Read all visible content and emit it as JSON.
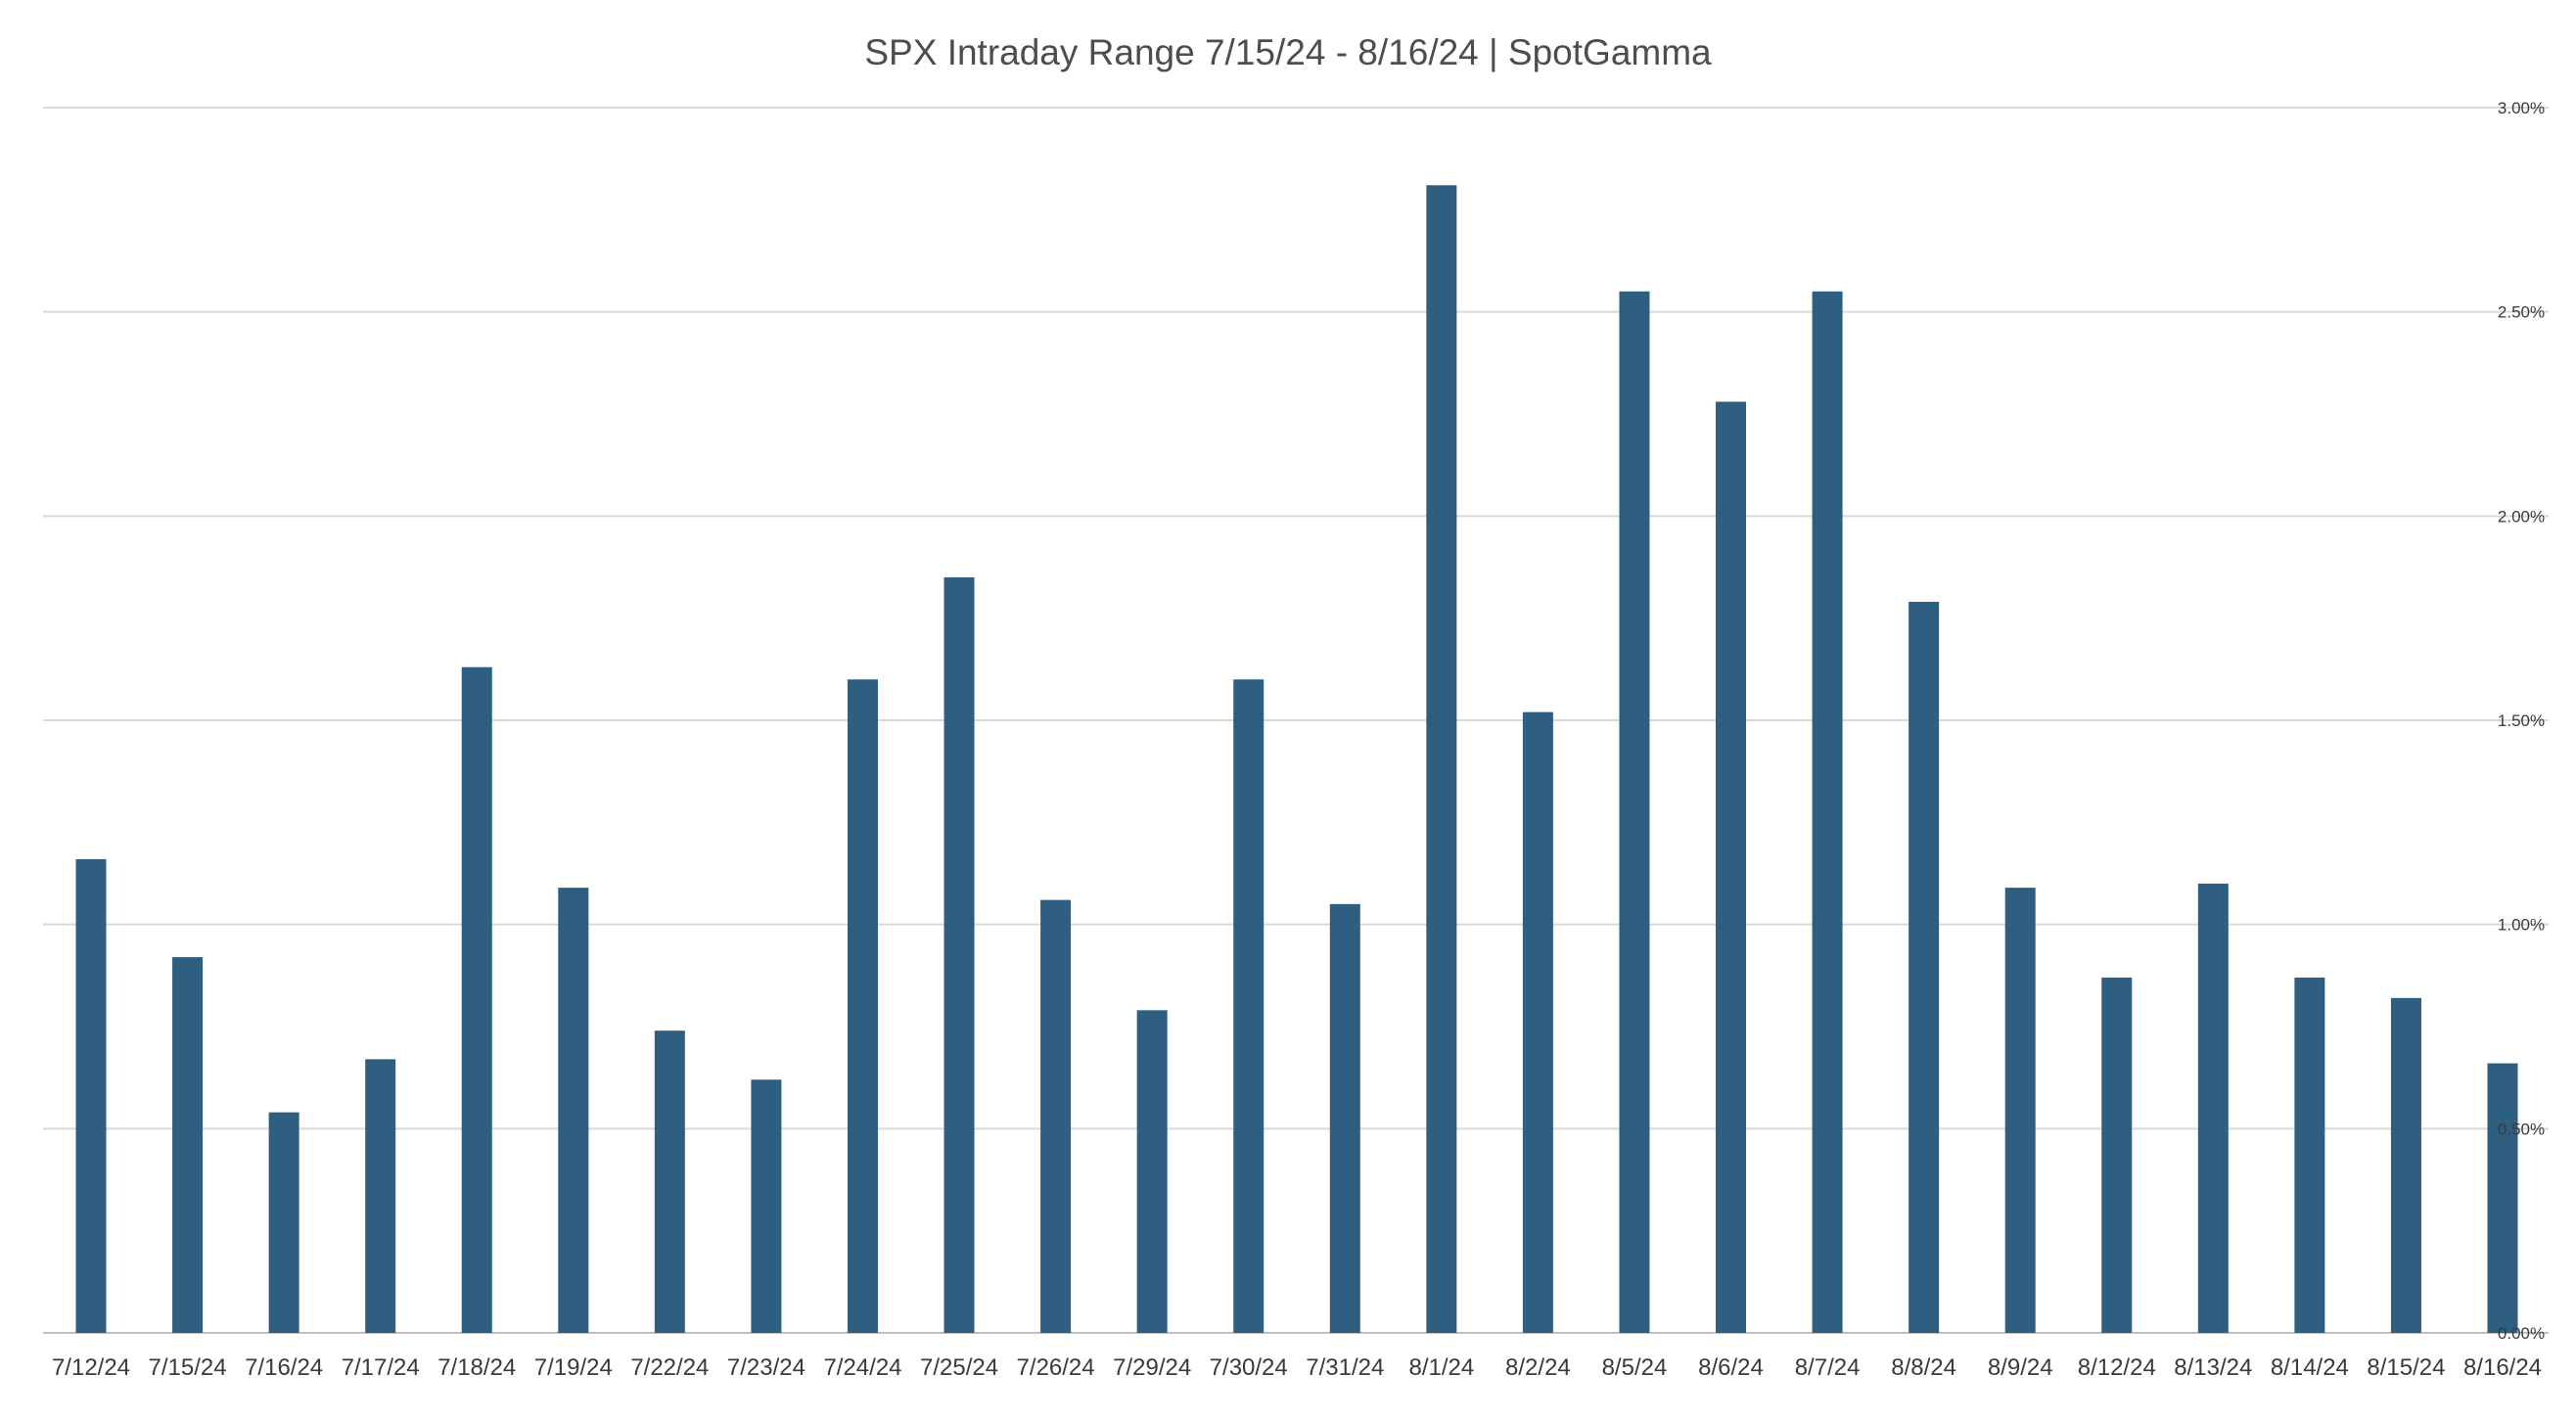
{
  "chart_data": {
    "type": "bar",
    "title": "SPX Intraday Range 7/15/24 - 8/16/24 | SpotGamma",
    "xlabel": "",
    "ylabel": "",
    "ylim": [
      0,
      3.0
    ],
    "y_axis_position": "right",
    "y_ticks": [
      0,
      0.5,
      1.0,
      1.5,
      2.0,
      2.5,
      3.0
    ],
    "y_tick_labels": [
      "0.00%",
      "0.50%",
      "1.00%",
      "1.50%",
      "2.00%",
      "2.50%",
      "3.00%"
    ],
    "grid": true,
    "bar_color": "#2e5f80",
    "categories": [
      "7/12/24",
      "7/15/24",
      "7/16/24",
      "7/17/24",
      "7/18/24",
      "7/19/24",
      "7/22/24",
      "7/23/24",
      "7/24/24",
      "7/25/24",
      "7/26/24",
      "7/29/24",
      "7/30/24",
      "7/31/24",
      "8/1/24",
      "8/2/24",
      "8/5/24",
      "8/6/24",
      "8/7/24",
      "8/8/24",
      "8/9/24",
      "8/12/24",
      "8/13/24",
      "8/14/24",
      "8/15/24",
      "8/16/24"
    ],
    "values": [
      1.16,
      0.92,
      0.54,
      0.67,
      1.63,
      1.09,
      0.74,
      0.62,
      1.6,
      1.85,
      1.06,
      0.79,
      1.6,
      1.05,
      2.81,
      1.52,
      2.55,
      2.28,
      2.55,
      1.79,
      1.09,
      0.87,
      1.1,
      0.87,
      0.82,
      0.66
    ]
  }
}
